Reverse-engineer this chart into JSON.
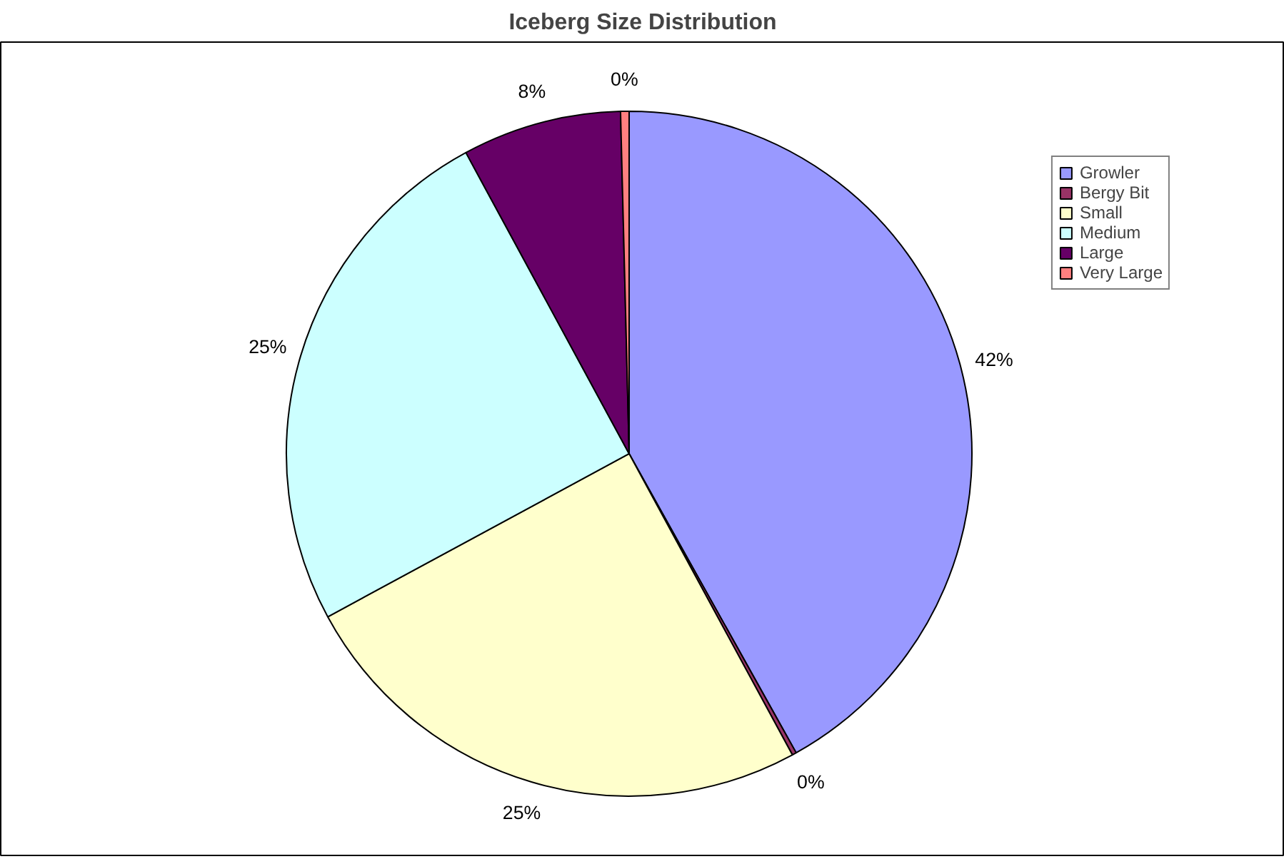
{
  "chart_data": {
    "type": "pie",
    "title": "Iceberg Size Distribution",
    "categories": [
      "Growler",
      "Bergy Bit",
      "Small",
      "Medium",
      "Large",
      "Very Large"
    ],
    "values": [
      41.9,
      0.2,
      25,
      25,
      7.5,
      0.4
    ],
    "colors": [
      "#9999ff",
      "#993366",
      "#ffffcc",
      "#ccffff",
      "#660066",
      "#ff8080"
    ],
    "value_labels": [
      "42%",
      "0%",
      "25%",
      "25%",
      "8%",
      "0%"
    ],
    "legend": "right"
  }
}
